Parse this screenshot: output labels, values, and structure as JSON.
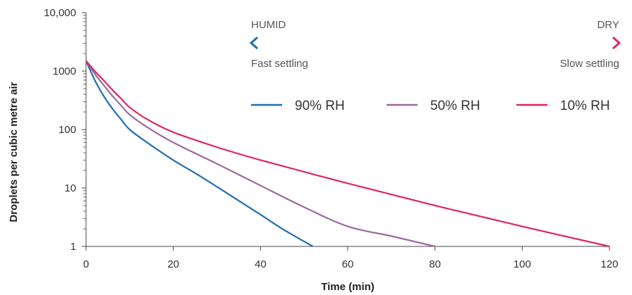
{
  "chart_data": {
    "type": "line",
    "title": "",
    "xlabel": "Time (min)",
    "ylabel": "Droplets per cubic metre air",
    "xlim": [
      0,
      120
    ],
    "ylim": [
      1,
      10000
    ],
    "yscale": "log",
    "grid": false,
    "legend_position": "top-right",
    "x_ticks": [
      0,
      20,
      40,
      60,
      80,
      100,
      120
    ],
    "y_ticks": [
      1,
      10,
      100,
      1000,
      10000
    ],
    "y_tick_labels": [
      "1",
      "10",
      "100",
      "1000",
      "10,000"
    ],
    "series": [
      {
        "name": "90% RH",
        "color": "#1f6fb0",
        "x": [
          0,
          2,
          4,
          6,
          8,
          10,
          14,
          20,
          25,
          30,
          40,
          45,
          52
        ],
        "y": [
          1500,
          700,
          380,
          230,
          150,
          100,
          60,
          30,
          18,
          10.5,
          3.5,
          2,
          1
        ]
      },
      {
        "name": "50% RH",
        "color": "#9b6a9e",
        "x": [
          0,
          2,
          4,
          6,
          8,
          10,
          14,
          20,
          30,
          40,
          50,
          60,
          70,
          80
        ],
        "y": [
          1500,
          900,
          580,
          380,
          260,
          180,
          110,
          60,
          26,
          11,
          4.7,
          2.2,
          1.5,
          1
        ]
      },
      {
        "name": "10% RH",
        "color": "#e0265e",
        "x": [
          0,
          2,
          4,
          6,
          8,
          10,
          14,
          20,
          30,
          40,
          60,
          80,
          100,
          120
        ],
        "y": [
          1500,
          1000,
          700,
          480,
          340,
          240,
          150,
          90,
          50,
          30,
          12,
          5,
          2.2,
          1
        ]
      }
    ],
    "annotations": {
      "humid": "HUMID",
      "dry": "DRY",
      "fast": "Fast settling",
      "slow": "Slow settling",
      "arrow_start_color": "#1f6fb0",
      "arrow_end_color": "#e0265e"
    }
  }
}
